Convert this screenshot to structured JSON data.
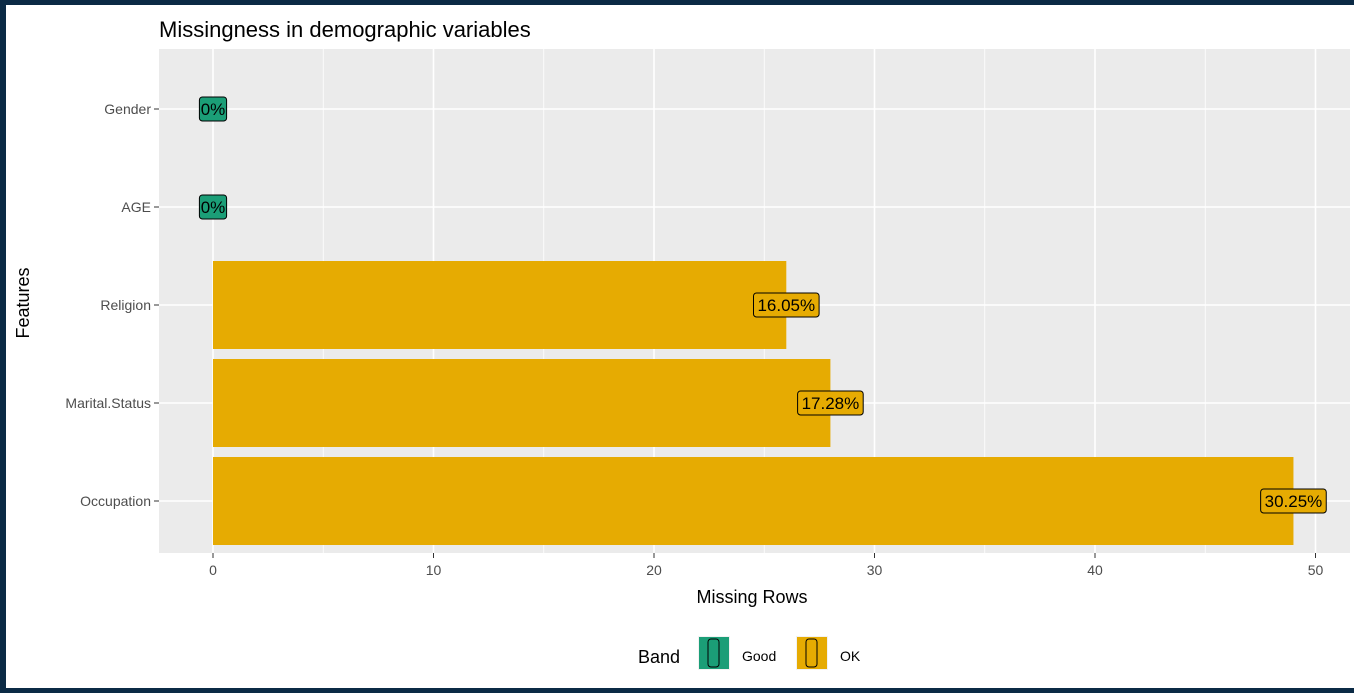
{
  "chart_data": {
    "type": "bar",
    "orientation": "horizontal",
    "title": "Missingness in demographic variables",
    "xlabel": "Missing Rows",
    "ylabel": "Features",
    "xlim": [
      0,
      50
    ],
    "xticks": [
      0,
      10,
      20,
      30,
      40,
      50
    ],
    "grid": true,
    "legend_position": "bottom",
    "categories": [
      "Gender",
      "AGE",
      "Religion",
      "Marital.Status",
      "Occupation"
    ],
    "values": [
      0,
      0,
      26,
      28,
      49
    ],
    "labels": [
      "0%",
      "0%",
      "16.05%",
      "17.28%",
      "30.25%"
    ],
    "bands": [
      "Good",
      "Good",
      "OK",
      "OK",
      "OK"
    ],
    "legend": {
      "title": "Band",
      "items": [
        {
          "name": "Good",
          "color": "#1b9e77"
        },
        {
          "name": "OK",
          "color": "#e6ab02"
        }
      ]
    },
    "colors": {
      "panel": "#ebebeb",
      "grid": "#ffffff",
      "Good": "#1b9e77",
      "OK": "#e6ab02"
    }
  }
}
